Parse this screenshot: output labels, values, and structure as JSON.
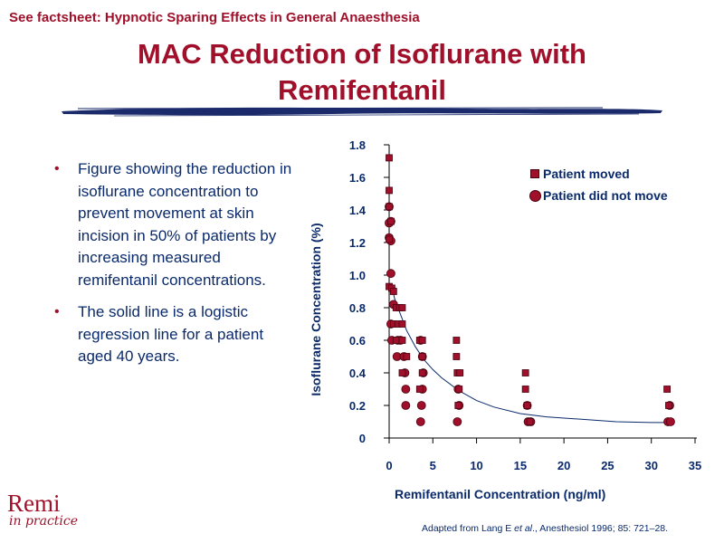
{
  "header": {
    "factsheet_link": "See factsheet: Hypnotic Sparing Effects in General Anaesthesia",
    "title_line1": "MAC Reduction of Isoflurane with",
    "title_line2": "Remifentanil"
  },
  "bullets": [
    {
      "marker": "•",
      "text": "Figure showing the reduction in isoflurane concentration to prevent movement at skin incision in 50% of patients by increasing measured remifentanil concentrations."
    },
    {
      "marker": "•",
      "text": "The solid line is a logistic regression line for a patient aged 40 years."
    }
  ],
  "logo": {
    "name": "Remi",
    "tagline": "in practice"
  },
  "citation": {
    "prefix": "Adapted from Lang E ",
    "etal": "et al",
    "suffix": "., Anesthesiol 1996; 85: 721–28."
  },
  "colors": {
    "marker": "#a0102a",
    "text": "#0a2a6b",
    "title": "#a0102a"
  },
  "chart_data": {
    "type": "scatter",
    "xlabel": "Remifentanil Concentration (ng/ml)",
    "ylabel": "Isoflurane Concentration (%)",
    "xlim": [
      0,
      35
    ],
    "ylim": [
      0,
      1.8
    ],
    "x_ticks": [
      "0",
      "5",
      "10",
      "15",
      "20",
      "25",
      "30",
      "35"
    ],
    "y_ticks": [
      "0",
      "0.2",
      "0.4",
      "0.6",
      "0.8",
      "1.0",
      "1.2",
      "1.4",
      "1.6",
      "1.8"
    ],
    "legend_position": "top-right",
    "series": [
      {
        "name": "Patient moved",
        "marker": "square",
        "points": [
          [
            0,
            1.72
          ],
          [
            0,
            1.52
          ],
          [
            0,
            1.42
          ],
          [
            0.2,
            1.33
          ],
          [
            0,
            1.22
          ],
          [
            0,
            0.93
          ],
          [
            0.3,
            0.92
          ],
          [
            0.5,
            0.9
          ],
          [
            0.8,
            0.8
          ],
          [
            1.2,
            0.8
          ],
          [
            1.5,
            0.8
          ],
          [
            0.5,
            0.7
          ],
          [
            1.0,
            0.7
          ],
          [
            1.5,
            0.7
          ],
          [
            0.8,
            0.6
          ],
          [
            1.5,
            0.6
          ],
          [
            2.0,
            0.5
          ],
          [
            1.5,
            0.4
          ],
          [
            3.5,
            0.6
          ],
          [
            3.8,
            0.6
          ],
          [
            3.8,
            0.5
          ],
          [
            3.8,
            0.4
          ],
          [
            3.5,
            0.3
          ],
          [
            7.7,
            0.6
          ],
          [
            7.7,
            0.5
          ],
          [
            7.8,
            0.4
          ],
          [
            8.1,
            0.4
          ],
          [
            8.0,
            0.3
          ],
          [
            7.9,
            0.2
          ],
          [
            15.6,
            0.4
          ],
          [
            15.6,
            0.3
          ],
          [
            15.8,
            0.2
          ],
          [
            16.1,
            0.1
          ],
          [
            31.8,
            0.3
          ],
          [
            32.0,
            0.2
          ]
        ]
      },
      {
        "name": "Patient did not move",
        "marker": "circle",
        "points": [
          [
            0,
            1.42
          ],
          [
            0.2,
            1.33
          ],
          [
            0,
            1.32
          ],
          [
            0,
            1.23
          ],
          [
            0.2,
            1.21
          ],
          [
            0.2,
            1.01
          ],
          [
            0.5,
            0.82
          ],
          [
            0.2,
            0.7
          ],
          [
            0.3,
            0.6
          ],
          [
            1.0,
            0.6
          ],
          [
            1.3,
            0.6
          ],
          [
            0.9,
            0.5
          ],
          [
            1.7,
            0.5
          ],
          [
            1.8,
            0.4
          ],
          [
            1.9,
            0.3
          ],
          [
            1.9,
            0.2
          ],
          [
            3.6,
            0.6
          ],
          [
            3.8,
            0.5
          ],
          [
            3.9,
            0.4
          ],
          [
            3.8,
            0.3
          ],
          [
            3.7,
            0.2
          ],
          [
            3.6,
            0.1
          ],
          [
            7.9,
            0.3
          ],
          [
            8.0,
            0.2
          ],
          [
            7.8,
            0.1
          ],
          [
            15.8,
            0.2
          ],
          [
            16.2,
            0.1
          ],
          [
            15.9,
            0.1
          ],
          [
            32.1,
            0.2
          ],
          [
            31.9,
            0.1
          ],
          [
            32.2,
            0.1
          ]
        ]
      }
    ],
    "regression_line": {
      "description": "logistic regression line",
      "points": [
        [
          0.3,
          0.94
        ],
        [
          0.6,
          0.86
        ],
        [
          1,
          0.8
        ],
        [
          1.5,
          0.73
        ],
        [
          2,
          0.66
        ],
        [
          3,
          0.56
        ],
        [
          4,
          0.48
        ],
        [
          5,
          0.42
        ],
        [
          6,
          0.37
        ],
        [
          8,
          0.29
        ],
        [
          10,
          0.23
        ],
        [
          12,
          0.19
        ],
        [
          15,
          0.15
        ],
        [
          18,
          0.13
        ],
        [
          22,
          0.115
        ],
        [
          26,
          0.1
        ],
        [
          30,
          0.095
        ],
        [
          32,
          0.095
        ]
      ]
    }
  }
}
